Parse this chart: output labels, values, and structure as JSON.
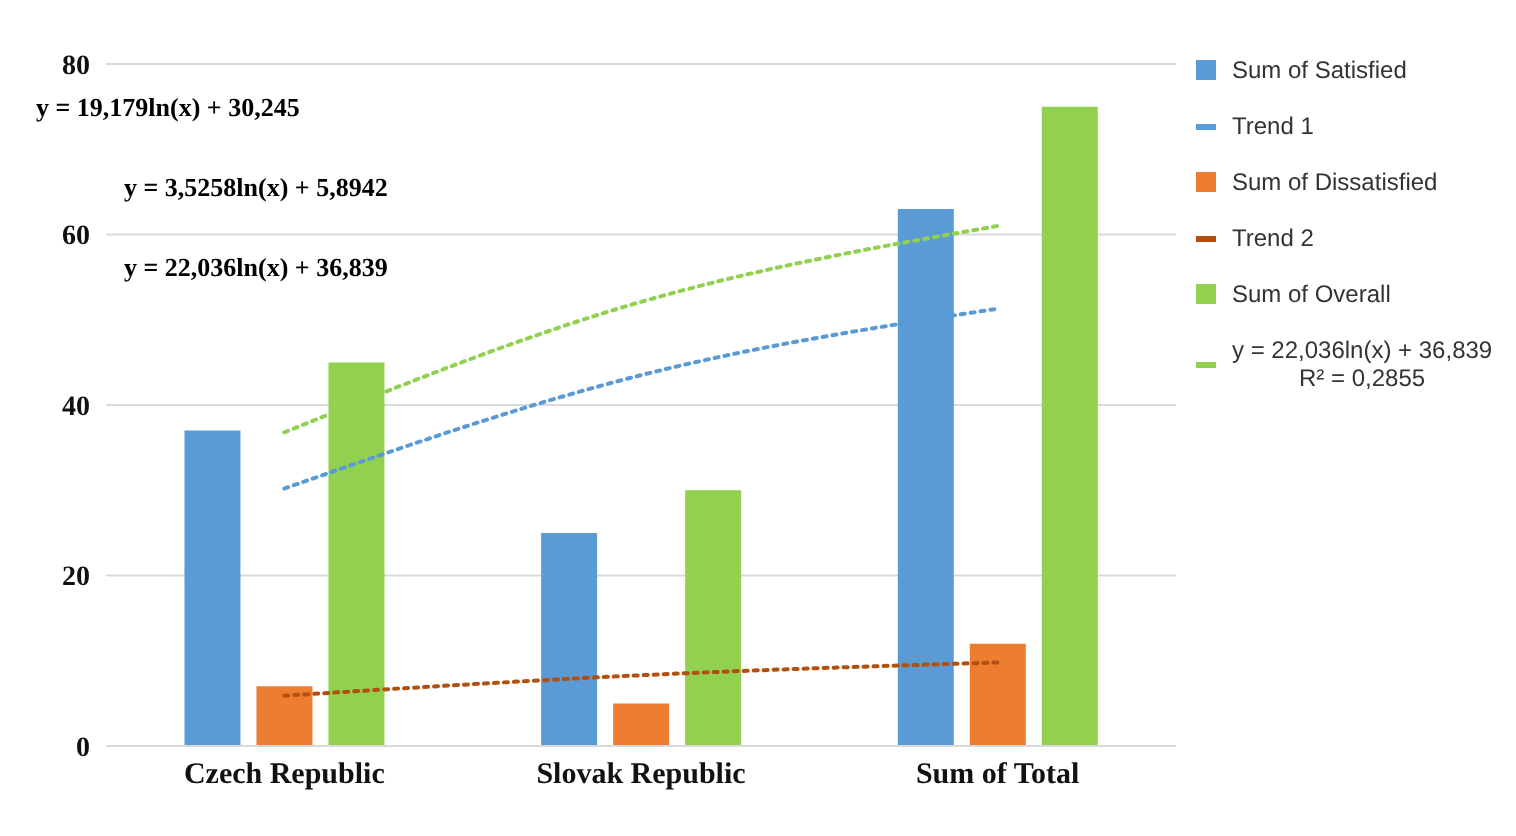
{
  "chart_data": {
    "type": "bar",
    "categories": [
      "Czech Republic",
      "Slovak Republic",
      "Sum of Total"
    ],
    "series": [
      {
        "name": "Sum of Satisfied",
        "color": "#5b9bd5",
        "values": [
          37,
          25,
          63
        ]
      },
      {
        "name": "Trend 1",
        "type": "line",
        "line_style": "dotted",
        "color": "#5b9bd5",
        "values": [
          30.2,
          43.5,
          51.3
        ]
      },
      {
        "name": "Sum of Dissatisfied",
        "color": "#ed7d31",
        "values": [
          7,
          5,
          12
        ]
      },
      {
        "name": "Trend 2",
        "type": "line",
        "line_style": "dotted",
        "color": "#b4500f",
        "values": [
          5.9,
          8.3,
          9.8
        ]
      },
      {
        "name": "Sum of Overall",
        "color": "#92d050",
        "values": [
          45,
          30,
          75
        ]
      },
      {
        "name": "y = 22,036ln(x) + 36,839\nR² = 0,2855",
        "type": "line",
        "line_style": "dotted",
        "color": "#92d050",
        "values": [
          36.8,
          52.1,
          61.0
        ]
      }
    ],
    "ylim": [
      0,
      80
    ],
    "yticks": [
      0,
      20,
      40,
      60,
      80
    ],
    "grid": "y",
    "legend": "right",
    "marker": "none",
    "annotations": [
      "y = 19,179ln(x) + 30,245",
      "y = 3,5258ln(x) + 5,8942",
      "y = 22,036ln(x) + 36,839"
    ]
  }
}
